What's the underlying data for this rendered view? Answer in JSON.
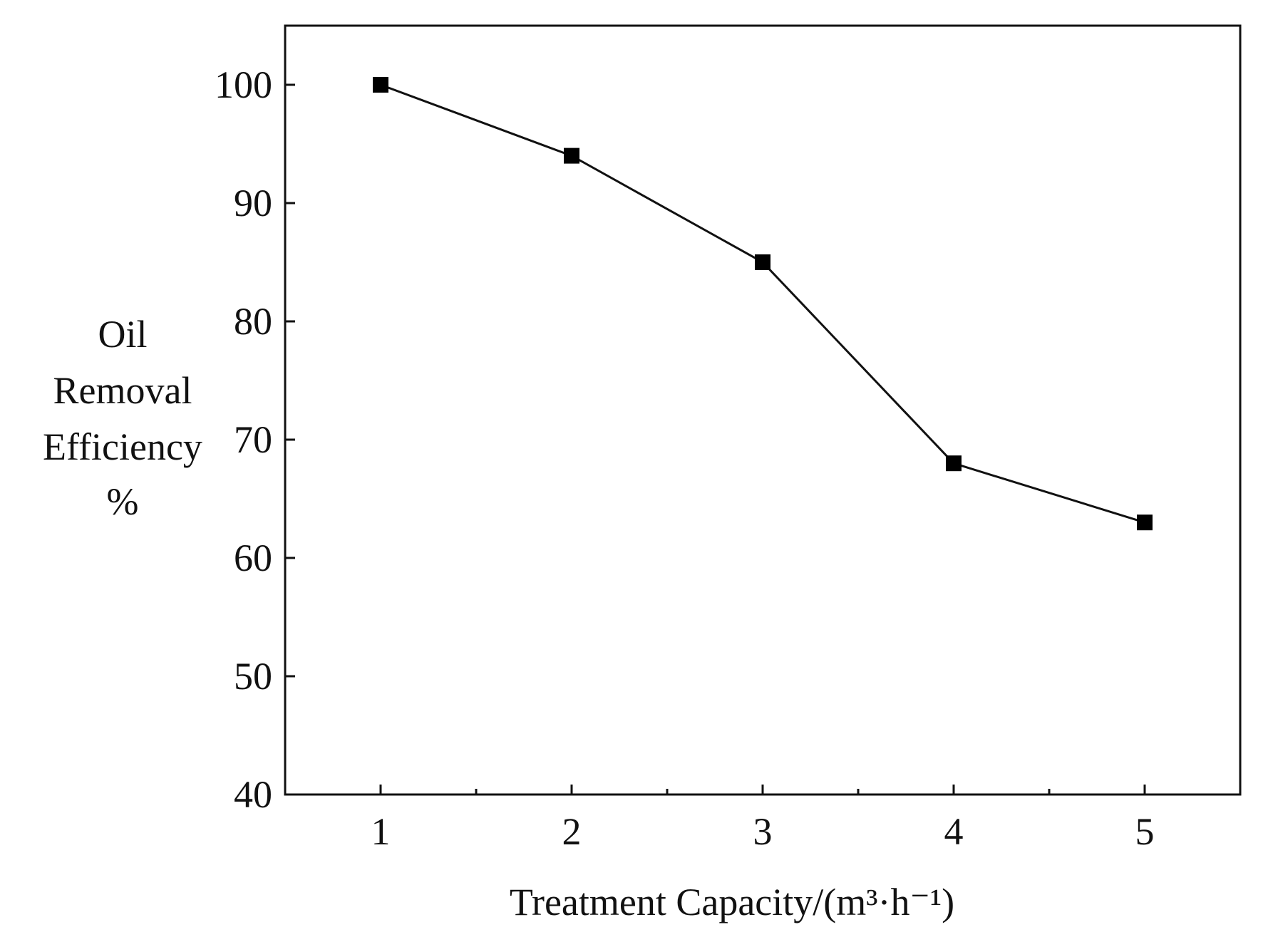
{
  "chart_data": {
    "type": "line",
    "title": "",
    "xlabel": "Treatment Capacity/(m³·h⁻¹)",
    "ylabel_lines": [
      "Oil",
      "Removal",
      "Efficiency",
      "%"
    ],
    "x": [
      1,
      2,
      3,
      4,
      5
    ],
    "series": [
      {
        "name": "Oil Removal Efficiency",
        "values": [
          100,
          94,
          85,
          68,
          63
        ],
        "marker": "square"
      }
    ],
    "x_ticks": [
      "1",
      "2",
      "3",
      "4",
      "5"
    ],
    "y_ticks": [
      "40",
      "50",
      "60",
      "70",
      "80",
      "90",
      "100"
    ],
    "xlim": [
      0.5,
      5.5
    ],
    "ylim": [
      40,
      105
    ],
    "grid": false,
    "line_color": "#111111",
    "marker_color": "#000000"
  }
}
